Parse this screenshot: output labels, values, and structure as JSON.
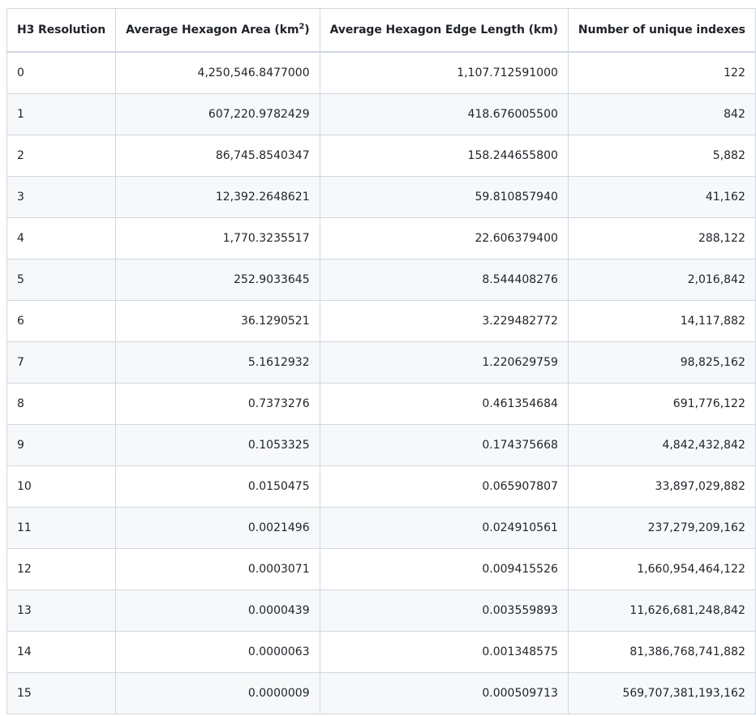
{
  "table": {
    "headers": {
      "resolution": "H3 Resolution",
      "area_prefix": "Average Hexagon Area (km",
      "area_sup": "2",
      "area_suffix": ")",
      "edge": "Average Hexagon Edge Length (km)",
      "indexes": "Number of unique indexes"
    },
    "rows": [
      {
        "res": "0",
        "area": "4,250,546.8477000",
        "edge": "1,107.712591000",
        "count": "122"
      },
      {
        "res": "1",
        "area": "607,220.9782429",
        "edge": "418.676005500",
        "count": "842"
      },
      {
        "res": "2",
        "area": "86,745.8540347",
        "edge": "158.244655800",
        "count": "5,882"
      },
      {
        "res": "3",
        "area": "12,392.2648621",
        "edge": "59.810857940",
        "count": "41,162"
      },
      {
        "res": "4",
        "area": "1,770.3235517",
        "edge": "22.606379400",
        "count": "288,122"
      },
      {
        "res": "5",
        "area": "252.9033645",
        "edge": "8.544408276",
        "count": "2,016,842"
      },
      {
        "res": "6",
        "area": "36.1290521",
        "edge": "3.229482772",
        "count": "14,117,882"
      },
      {
        "res": "7",
        "area": "5.1612932",
        "edge": "1.220629759",
        "count": "98,825,162"
      },
      {
        "res": "8",
        "area": "0.7373276",
        "edge": "0.461354684",
        "count": "691,776,122"
      },
      {
        "res": "9",
        "area": "0.1053325",
        "edge": "0.174375668",
        "count": "4,842,432,842"
      },
      {
        "res": "10",
        "area": "0.0150475",
        "edge": "0.065907807",
        "count": "33,897,029,882"
      },
      {
        "res": "11",
        "area": "0.0021496",
        "edge": "0.024910561",
        "count": "237,279,209,162"
      },
      {
        "res": "12",
        "area": "0.0003071",
        "edge": "0.009415526",
        "count": "1,660,954,464,122"
      },
      {
        "res": "13",
        "area": "0.0000439",
        "edge": "0.003559893",
        "count": "11,626,681,248,842"
      },
      {
        "res": "14",
        "area": "0.0000063",
        "edge": "0.001348575",
        "count": "81,386,768,741,882"
      },
      {
        "res": "15",
        "area": "0.0000009",
        "edge": "0.000509713",
        "count": "569,707,381,193,162"
      }
    ]
  }
}
